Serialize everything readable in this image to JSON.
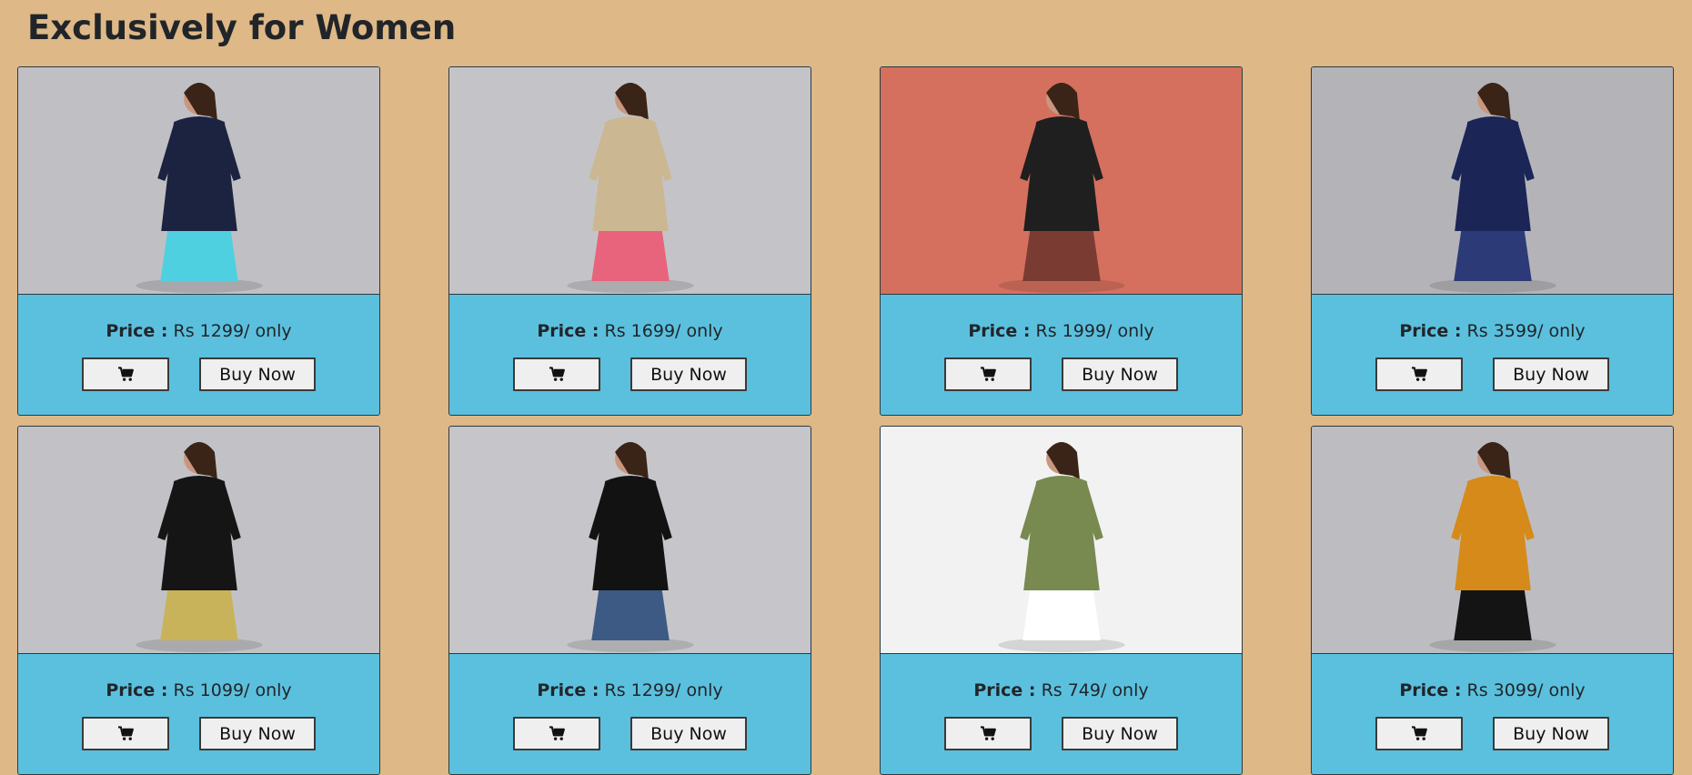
{
  "page": {
    "title": "Exclusively for Women"
  },
  "colors": {
    "page_background": "#deb887",
    "card_background": "#5bc0de",
    "button_background": "#efefef"
  },
  "labels": {
    "price_label": "Price :",
    "buy_now": "Buy Now",
    "cart_icon": "shopping-cart-icon"
  },
  "products": [
    {
      "price_text": "Rs 1299/ only",
      "photo": "woman-navy-kurta-turquoise-palazzo",
      "bg": "#c0c0c4",
      "accent": "#1c2340",
      "accent2": "#4fd0e0"
    },
    {
      "price_text": "Rs 1699/ only",
      "photo": "woman-beige-kurta-pink-dupatta",
      "bg": "#c4c4c8",
      "accent": "#cbb893",
      "accent2": "#e8637c"
    },
    {
      "price_text": "Rs 1999/ only",
      "photo": "woman-black-print-kurta-stool",
      "bg": "#d5705f",
      "accent": "#1f1f1f",
      "accent2": "#7a3c32"
    },
    {
      "price_text": "Rs 3599/ only",
      "photo": "woman-navy-lehenga",
      "bg": "#b4b4b8",
      "accent": "#1b2556",
      "accent2": "#2d3a78"
    },
    {
      "price_text": "Rs 1099/ only",
      "photo": "woman-black-floral-maxi",
      "bg": "#c2c2c6",
      "accent": "#151515",
      "accent2": "#c9b35a"
    },
    {
      "price_text": "Rs 1299/ only",
      "photo": "woman-black-tunic-jeans",
      "bg": "#c6c6ca",
      "accent": "#121212",
      "accent2": "#3d5a85"
    },
    {
      "price_text": "Rs 749/ only",
      "photo": "woman-olive-trousers",
      "bg": "#f2f2f2",
      "accent": "#788a4f",
      "accent2": "#ffffff"
    },
    {
      "price_text": "Rs 3099/ only",
      "photo": "woman-mustard-shrug",
      "bg": "#bdbdc1",
      "accent": "#d58a1a",
      "accent2": "#141414"
    }
  ]
}
